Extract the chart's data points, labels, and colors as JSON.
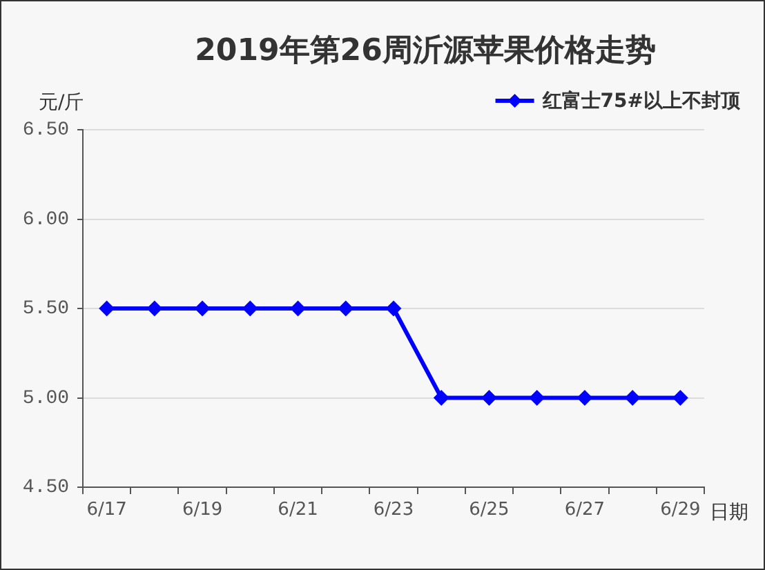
{
  "chart_data": {
    "type": "line",
    "title": "2019年第26周沂源苹果价格走势",
    "xlabel": "日期",
    "ylabel": "元/斤",
    "categories": [
      "6/17",
      null,
      "6/19",
      null,
      "6/21",
      null,
      "6/23",
      null,
      "6/25",
      null,
      "6/27",
      null,
      "6/29"
    ],
    "series": [
      {
        "name": "红富士75#以上不封顶",
        "color": "#0000ff",
        "values": [
          5.5,
          5.5,
          5.5,
          5.5,
          5.5,
          5.5,
          5.5,
          5.0,
          5.0,
          5.0,
          5.0,
          5.0,
          5.0
        ]
      }
    ],
    "ylim": [
      4.5,
      6.5
    ],
    "yticks": [
      {
        "value": 4.5,
        "label": "4.50"
      },
      {
        "value": 5.0,
        "label": "5.00"
      },
      {
        "value": 5.5,
        "label": "5.50"
      },
      {
        "value": 6.0,
        "label": "6.00"
      },
      {
        "value": 6.5,
        "label": "6.50"
      }
    ],
    "grid": "y",
    "legend": "top right",
    "marker": "diamond"
  }
}
